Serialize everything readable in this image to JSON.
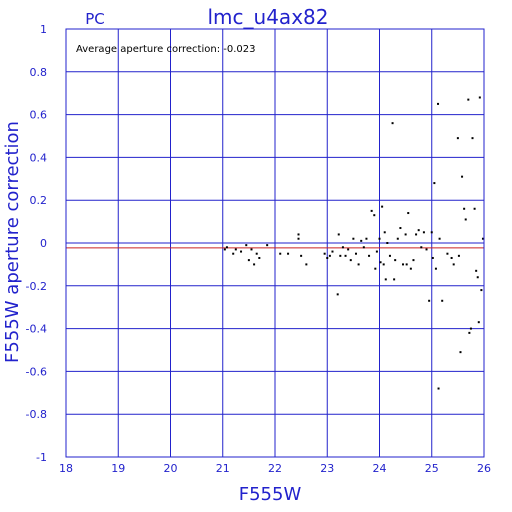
{
  "chart_data": {
    "type": "scatter",
    "title": "lmc_u4ax82",
    "corner_label": "PC",
    "annotation": "Average aperture correction: -0.023",
    "xlabel": "F555W",
    "ylabel": "F555W aperture correction",
    "xlim": [
      18,
      26
    ],
    "ylim": [
      -1,
      1
    ],
    "xticks": [
      18,
      19,
      20,
      21,
      22,
      23,
      24,
      25,
      26
    ],
    "yticks": [
      -1,
      -0.8,
      -0.6,
      -0.4,
      -0.2,
      0,
      0.2,
      0.4,
      0.6,
      0.8,
      1
    ],
    "ytick_labels": [
      "-1",
      "-0.8",
      "-0.6",
      "-0.4",
      "-0.2",
      "0",
      "0.2",
      "0.4",
      "0.6",
      "0.8",
      "1"
    ],
    "grid": true,
    "reference_lines": [
      {
        "y": 0,
        "color": "#2222cc"
      },
      {
        "y": -0.023,
        "color": "#cc2222"
      }
    ],
    "colors": {
      "axis": "#2222cc",
      "points": "#000000",
      "mean_line": "#cc2222"
    },
    "points": [
      [
        21.04,
        -0.03
      ],
      [
        21.08,
        -0.02
      ],
      [
        21.2,
        -0.05
      ],
      [
        21.25,
        -0.03
      ],
      [
        21.35,
        -0.04
      ],
      [
        21.45,
        -0.01
      ],
      [
        21.5,
        -0.08
      ],
      [
        21.55,
        -0.03
      ],
      [
        21.6,
        -0.1
      ],
      [
        21.65,
        -0.05
      ],
      [
        21.7,
        -0.07
      ],
      [
        21.85,
        -0.01
      ],
      [
        22.1,
        -0.05
      ],
      [
        22.25,
        -0.05
      ],
      [
        22.45,
        0.04
      ],
      [
        22.45,
        0.02
      ],
      [
        22.5,
        -0.06
      ],
      [
        22.6,
        -0.1
      ],
      [
        22.95,
        -0.05
      ],
      [
        23.0,
        -0.07
      ],
      [
        23.05,
        -0.06
      ],
      [
        23.1,
        -0.04
      ],
      [
        23.2,
        -0.24
      ],
      [
        23.22,
        0.04
      ],
      [
        23.25,
        -0.06
      ],
      [
        23.3,
        -0.02
      ],
      [
        23.35,
        -0.06
      ],
      [
        23.4,
        -0.03
      ],
      [
        23.45,
        -0.08
      ],
      [
        23.5,
        0.02
      ],
      [
        23.55,
        -0.05
      ],
      [
        23.6,
        -0.1
      ],
      [
        23.65,
        0.01
      ],
      [
        23.7,
        -0.02
      ],
      [
        23.75,
        0.02
      ],
      [
        23.8,
        -0.06
      ],
      [
        23.85,
        0.15
      ],
      [
        23.9,
        0.13
      ],
      [
        23.92,
        -0.12
      ],
      [
        23.95,
        -0.04
      ],
      [
        24.0,
        0.02
      ],
      [
        24.02,
        -0.09
      ],
      [
        24.05,
        0.17
      ],
      [
        24.08,
        -0.1
      ],
      [
        24.1,
        0.05
      ],
      [
        24.12,
        -0.17
      ],
      [
        24.15,
        0.0
      ],
      [
        24.2,
        -0.06
      ],
      [
        24.25,
        0.56
      ],
      [
        24.28,
        -0.17
      ],
      [
        24.3,
        -0.08
      ],
      [
        24.35,
        0.02
      ],
      [
        24.4,
        0.07
      ],
      [
        24.45,
        -0.1
      ],
      [
        24.5,
        0.04
      ],
      [
        24.52,
        -0.1
      ],
      [
        24.55,
        0.14
      ],
      [
        24.6,
        -0.12
      ],
      [
        24.65,
        -0.08
      ],
      [
        24.7,
        0.04
      ],
      [
        24.75,
        0.06
      ],
      [
        24.8,
        -0.02
      ],
      [
        24.85,
        0.05
      ],
      [
        24.9,
        -0.03
      ],
      [
        24.95,
        -0.27
      ],
      [
        25.0,
        0.05
      ],
      [
        25.02,
        -0.07
      ],
      [
        25.05,
        0.28
      ],
      [
        25.08,
        -0.12
      ],
      [
        25.12,
        0.65
      ],
      [
        25.13,
        -0.68
      ],
      [
        25.15,
        0.02
      ],
      [
        25.2,
        -0.27
      ],
      [
        25.3,
        -0.05
      ],
      [
        25.38,
        -0.07
      ],
      [
        25.42,
        -0.1
      ],
      [
        25.5,
        0.49
      ],
      [
        25.52,
        -0.06
      ],
      [
        25.55,
        -0.51
      ],
      [
        25.58,
        0.31
      ],
      [
        25.62,
        0.16
      ],
      [
        25.65,
        0.11
      ],
      [
        25.7,
        0.67
      ],
      [
        25.72,
        -0.42
      ],
      [
        25.75,
        -0.4
      ],
      [
        25.78,
        0.49
      ],
      [
        25.82,
        0.16
      ],
      [
        25.85,
        -0.13
      ],
      [
        25.88,
        -0.16
      ],
      [
        25.9,
        -0.37
      ],
      [
        25.92,
        0.68
      ],
      [
        25.95,
        -0.22
      ],
      [
        25.98,
        0.02
      ]
    ]
  }
}
